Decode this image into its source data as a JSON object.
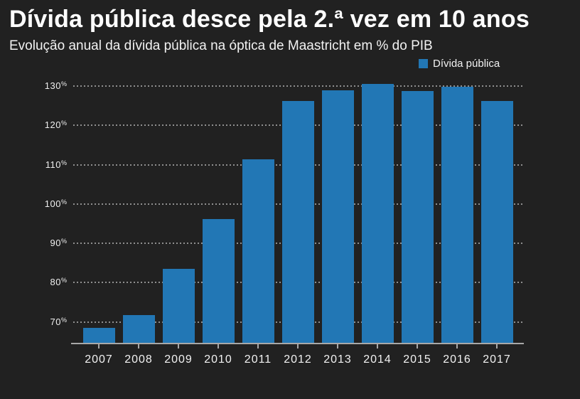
{
  "header": {
    "title": "Dívida pública desce pela 2.ª vez em 10 anos",
    "subtitle": "Evolução anual da dívida pública na óptica de Maastricht em % do PIB"
  },
  "legend": {
    "label": "Dívida pública"
  },
  "colors": {
    "background": "#212121",
    "bar": "#2277b5",
    "grid": "#8f8f8f",
    "axis": "#a8a8a8",
    "text": "#f5f5f5"
  },
  "chart_data": {
    "type": "bar",
    "title": "Dívida pública desce pela 2.ª vez em 10 anos",
    "subtitle": "Evolução anual da dívida pública na óptica de Maastricht em % do PIB",
    "legend_entries": [
      "Dívida pública"
    ],
    "legend_position": "top-right",
    "categories": [
      "2007",
      "2008",
      "2009",
      "2010",
      "2011",
      "2012",
      "2013",
      "2014",
      "2015",
      "2016",
      "2017"
    ],
    "values": [
      68.4,
      71.7,
      83.6,
      96.2,
      111.4,
      126.2,
      129.0,
      130.6,
      128.8,
      129.9,
      126.2
    ],
    "unit": "%",
    "xlabel": "",
    "ylabel": "",
    "ylim": [
      64.5,
      132
    ],
    "yticks": [
      70,
      80,
      90,
      100,
      110,
      120,
      130
    ],
    "yticklabels": [
      "70%",
      "80%",
      "90%",
      "100%",
      "110%",
      "120%",
      "130%"
    ],
    "grid": "horizontal-dotted"
  }
}
